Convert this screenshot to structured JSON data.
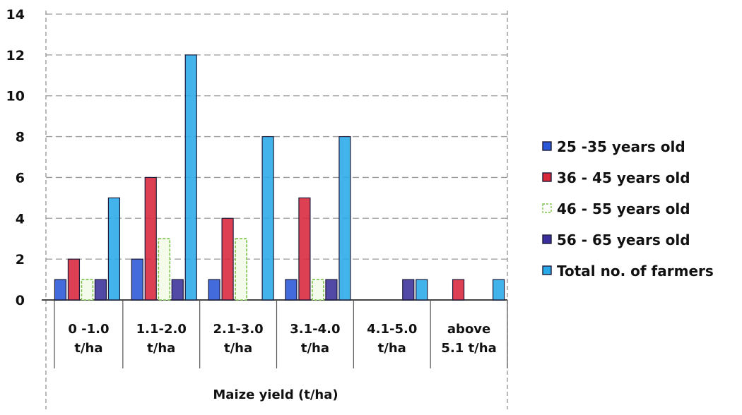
{
  "chart_data": {
    "type": "bar",
    "title": "",
    "xlabel": "Maize yield (t/ha)",
    "ylabel": "",
    "ylim": [
      0,
      14
    ],
    "yticks": [
      0,
      2,
      4,
      6,
      8,
      10,
      12,
      14
    ],
    "grid": true,
    "legend_position": "right",
    "categories": [
      [
        "0 -1.0",
        "t/ha"
      ],
      [
        "1.1-2.0",
        "t/ha"
      ],
      [
        "2.1-3.0",
        "t/ha"
      ],
      [
        "3.1-4.0",
        "t/ha"
      ],
      [
        "4.1-5.0",
        "t/ha"
      ],
      [
        "above",
        "5.1 t/ha"
      ]
    ],
    "series": [
      {
        "name": "25 -35 years old",
        "color": "#2a57d6",
        "values": [
          1,
          2,
          1,
          1,
          0,
          0
        ]
      },
      {
        "name": "36 - 45 years old",
        "color": "#d8263a",
        "values": [
          2,
          6,
          4,
          5,
          0,
          1
        ]
      },
      {
        "name": "46 - 55 years old",
        "color": "#7cc24a",
        "values": [
          1,
          3,
          3,
          1,
          0,
          0
        ]
      },
      {
        "name": "56 - 65 years old",
        "color": "#3a2f9a",
        "values": [
          1,
          1,
          0,
          1,
          1,
          0
        ]
      },
      {
        "name": "Total no. of farmers",
        "color": "#29a9e8",
        "values": [
          5,
          12,
          8,
          8,
          1,
          1
        ]
      }
    ]
  }
}
